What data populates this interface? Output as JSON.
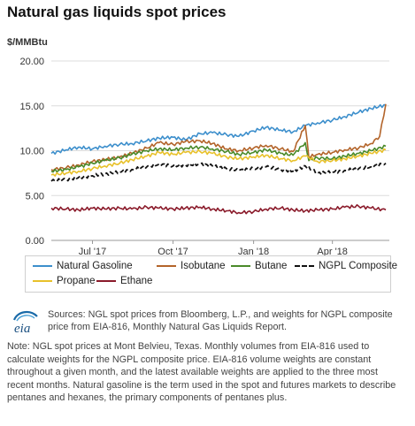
{
  "header": {
    "title": "Natural gas liquids spot prices",
    "unit": "$/MMBtu"
  },
  "chart_data": {
    "type": "line",
    "title": "Natural gas liquids spot prices",
    "ylabel": "$/MMBtu",
    "ylim": [
      0,
      20
    ],
    "yticks": [
      "0.00",
      "5.00",
      "10.00",
      "15.00",
      "20.00"
    ],
    "xlim": [
      "2017-05-15",
      "2018-06-05"
    ],
    "xticks": [
      {
        "label": "Jul '17",
        "date": "2017-07-01"
      },
      {
        "label": "Oct '17",
        "date": "2017-10-01"
      },
      {
        "label": "Jan '18",
        "date": "2018-01-01"
      },
      {
        "label": "Apr '18",
        "date": "2018-04-01"
      }
    ],
    "grid": true,
    "legend_position": "bottom",
    "series": [
      {
        "name": "Natural Gasoline",
        "color": "#3d8fcc",
        "dash": "solid",
        "points": [
          [
            "2017-05-15",
            9.7
          ],
          [
            "2017-06-01",
            10.1
          ],
          [
            "2017-06-15",
            10.4
          ],
          [
            "2017-07-01",
            10.2
          ],
          [
            "2017-07-15",
            10.5
          ],
          [
            "2017-08-01",
            10.7
          ],
          [
            "2017-08-15",
            10.8
          ],
          [
            "2017-09-01",
            11.1
          ],
          [
            "2017-09-15",
            11.4
          ],
          [
            "2017-10-01",
            11.5
          ],
          [
            "2017-10-15",
            11.2
          ],
          [
            "2017-11-01",
            11.9
          ],
          [
            "2017-11-15",
            12.0
          ],
          [
            "2017-12-01",
            11.8
          ],
          [
            "2017-12-15",
            11.6
          ],
          [
            "2018-01-01",
            12.2
          ],
          [
            "2018-01-15",
            12.6
          ],
          [
            "2018-02-01",
            12.3
          ],
          [
            "2018-02-15",
            12.1
          ],
          [
            "2018-03-01",
            12.8
          ],
          [
            "2018-03-15",
            13.1
          ],
          [
            "2018-04-01",
            13.4
          ],
          [
            "2018-04-15",
            13.8
          ],
          [
            "2018-05-01",
            14.3
          ],
          [
            "2018-05-15",
            14.7
          ],
          [
            "2018-06-01",
            15.1
          ]
        ]
      },
      {
        "name": "Isobutane",
        "color": "#b3642a",
        "dash": "solid",
        "points": [
          [
            "2017-05-15",
            7.9
          ],
          [
            "2017-06-01",
            8.1
          ],
          [
            "2017-06-15",
            8.4
          ],
          [
            "2017-07-01",
            8.8
          ],
          [
            "2017-07-15",
            9.0
          ],
          [
            "2017-08-01",
            9.3
          ],
          [
            "2017-08-15",
            9.7
          ],
          [
            "2017-09-01",
            10.3
          ],
          [
            "2017-09-15",
            10.9
          ],
          [
            "2017-10-01",
            10.7
          ],
          [
            "2017-10-15",
            11.0
          ],
          [
            "2017-11-01",
            11.1
          ],
          [
            "2017-11-15",
            10.8
          ],
          [
            "2017-12-01",
            10.2
          ],
          [
            "2017-12-15",
            10.0
          ],
          [
            "2018-01-01",
            10.3
          ],
          [
            "2018-01-15",
            10.6
          ],
          [
            "2018-02-01",
            10.2
          ],
          [
            "2018-02-15",
            9.9
          ],
          [
            "2018-03-01",
            12.8
          ],
          [
            "2018-03-05",
            9.3
          ],
          [
            "2018-03-15",
            9.6
          ],
          [
            "2018-04-01",
            9.8
          ],
          [
            "2018-04-15",
            10.1
          ],
          [
            "2018-05-01",
            10.3
          ],
          [
            "2018-05-15",
            10.8
          ],
          [
            "2018-05-25",
            11.6
          ],
          [
            "2018-06-01",
            15.2
          ]
        ]
      },
      {
        "name": "Butane",
        "color": "#4a8a2a",
        "dash": "solid",
        "points": [
          [
            "2017-05-15",
            7.7
          ],
          [
            "2017-06-01",
            7.9
          ],
          [
            "2017-06-15",
            8.2
          ],
          [
            "2017-07-01",
            8.6
          ],
          [
            "2017-07-15",
            8.9
          ],
          [
            "2017-08-01",
            9.2
          ],
          [
            "2017-08-15",
            9.6
          ],
          [
            "2017-09-01",
            10.0
          ],
          [
            "2017-09-15",
            10.2
          ],
          [
            "2017-10-01",
            10.1
          ],
          [
            "2017-10-15",
            10.3
          ],
          [
            "2017-11-01",
            10.4
          ],
          [
            "2017-11-15",
            10.2
          ],
          [
            "2017-12-01",
            9.9
          ],
          [
            "2017-12-15",
            9.6
          ],
          [
            "2018-01-01",
            9.8
          ],
          [
            "2018-01-15",
            10.1
          ],
          [
            "2018-02-01",
            9.7
          ],
          [
            "2018-02-15",
            9.5
          ],
          [
            "2018-03-01",
            10.9
          ],
          [
            "2018-03-05",
            8.9
          ],
          [
            "2018-03-15",
            9.2
          ],
          [
            "2018-04-01",
            9.1
          ],
          [
            "2018-04-15",
            9.4
          ],
          [
            "2018-05-01",
            9.7
          ],
          [
            "2018-05-15",
            10.0
          ],
          [
            "2018-06-01",
            10.5
          ]
        ]
      },
      {
        "name": "NGPL Composite",
        "color": "#111111",
        "dash": "dash",
        "points": [
          [
            "2017-05-15",
            6.6
          ],
          [
            "2017-06-01",
            6.8
          ],
          [
            "2017-06-15",
            7.0
          ],
          [
            "2017-07-01",
            7.2
          ],
          [
            "2017-07-15",
            7.4
          ],
          [
            "2017-08-01",
            7.6
          ],
          [
            "2017-08-15",
            7.9
          ],
          [
            "2017-09-01",
            8.2
          ],
          [
            "2017-09-15",
            8.5
          ],
          [
            "2017-10-01",
            8.3
          ],
          [
            "2017-10-15",
            8.4
          ],
          [
            "2017-11-01",
            8.5
          ],
          [
            "2017-11-15",
            8.3
          ],
          [
            "2017-12-01",
            8.0
          ],
          [
            "2017-12-15",
            7.8
          ],
          [
            "2018-01-01",
            8.0
          ],
          [
            "2018-01-15",
            8.2
          ],
          [
            "2018-02-01",
            7.9
          ],
          [
            "2018-02-15",
            7.7
          ],
          [
            "2018-03-01",
            8.3
          ],
          [
            "2018-03-15",
            7.5
          ],
          [
            "2018-04-01",
            7.6
          ],
          [
            "2018-04-15",
            7.8
          ],
          [
            "2018-05-01",
            8.0
          ],
          [
            "2018-05-15",
            8.2
          ],
          [
            "2018-06-01",
            8.6
          ]
        ]
      },
      {
        "name": "Propane",
        "color": "#e8c12a",
        "dash": "solid",
        "points": [
          [
            "2017-05-15",
            7.3
          ],
          [
            "2017-06-01",
            7.5
          ],
          [
            "2017-06-15",
            7.7
          ],
          [
            "2017-07-01",
            8.0
          ],
          [
            "2017-07-15",
            8.3
          ],
          [
            "2017-08-01",
            8.6
          ],
          [
            "2017-08-15",
            9.0
          ],
          [
            "2017-09-01",
            9.4
          ],
          [
            "2017-09-15",
            9.8
          ],
          [
            "2017-10-01",
            9.6
          ],
          [
            "2017-10-15",
            9.8
          ],
          [
            "2017-11-01",
            9.9
          ],
          [
            "2017-11-15",
            9.7
          ],
          [
            "2017-12-01",
            9.3
          ],
          [
            "2017-12-15",
            9.1
          ],
          [
            "2018-01-01",
            9.3
          ],
          [
            "2018-01-15",
            9.5
          ],
          [
            "2018-02-01",
            9.1
          ],
          [
            "2018-02-15",
            8.9
          ],
          [
            "2018-03-01",
            9.4
          ],
          [
            "2018-03-15",
            8.8
          ],
          [
            "2018-04-01",
            8.9
          ],
          [
            "2018-04-15",
            9.1
          ],
          [
            "2018-05-01",
            9.4
          ],
          [
            "2018-05-15",
            9.7
          ],
          [
            "2018-06-01",
            10.1
          ]
        ]
      },
      {
        "name": "Ethane",
        "color": "#8a1a2a",
        "dash": "solid",
        "points": [
          [
            "2017-05-15",
            3.6
          ],
          [
            "2017-06-01",
            3.5
          ],
          [
            "2017-06-15",
            3.4
          ],
          [
            "2017-07-01",
            3.6
          ],
          [
            "2017-07-15",
            3.5
          ],
          [
            "2017-08-01",
            3.6
          ],
          [
            "2017-08-15",
            3.5
          ],
          [
            "2017-09-01",
            3.7
          ],
          [
            "2017-09-15",
            3.6
          ],
          [
            "2017-10-01",
            3.5
          ],
          [
            "2017-10-15",
            3.6
          ],
          [
            "2017-11-01",
            3.7
          ],
          [
            "2017-11-15",
            3.5
          ],
          [
            "2017-12-01",
            3.3
          ],
          [
            "2017-12-15",
            3.1
          ],
          [
            "2018-01-01",
            3.2
          ],
          [
            "2018-01-15",
            3.5
          ],
          [
            "2018-02-01",
            3.6
          ],
          [
            "2018-02-15",
            3.4
          ],
          [
            "2018-03-01",
            3.3
          ],
          [
            "2018-03-15",
            3.4
          ],
          [
            "2018-04-01",
            3.5
          ],
          [
            "2018-04-15",
            3.7
          ],
          [
            "2018-05-01",
            3.8
          ],
          [
            "2018-05-15",
            3.6
          ],
          [
            "2018-06-01",
            3.4
          ]
        ]
      }
    ]
  },
  "legend": {
    "items": [
      {
        "label": "Natural Gasoline",
        "color": "#3d8fcc",
        "dash": "solid"
      },
      {
        "label": "Isobutane",
        "color": "#b3642a",
        "dash": "solid"
      },
      {
        "label": "Butane",
        "color": "#4a8a2a",
        "dash": "solid"
      },
      {
        "label": "NGPL Composite",
        "color": "#111111",
        "dash": "dash"
      },
      {
        "label": "Propane",
        "color": "#e8c12a",
        "dash": "solid"
      },
      {
        "label": "Ethane",
        "color": "#8a1a2a",
        "dash": "solid"
      }
    ]
  },
  "footer": {
    "logo_text": "eia",
    "sources": "Sources: NGL spot prices from Bloomberg, L.P., and weights for NGPL composite price from EIA-816, Monthly Natural Gas Liquids Report.",
    "note": "Note: NGL spot prices at Mont Belvieu, Texas. Monthly volumes from EIA-816 used to calculate weights for the NGPL composite price. EIA-816 volume weights are constant throughout a given month, and the latest available weights are applied to the three most recent months. Natural gasoline is the term used in the spot and futures markets to describe pentanes and hexanes, the primary components of pentanes plus."
  }
}
